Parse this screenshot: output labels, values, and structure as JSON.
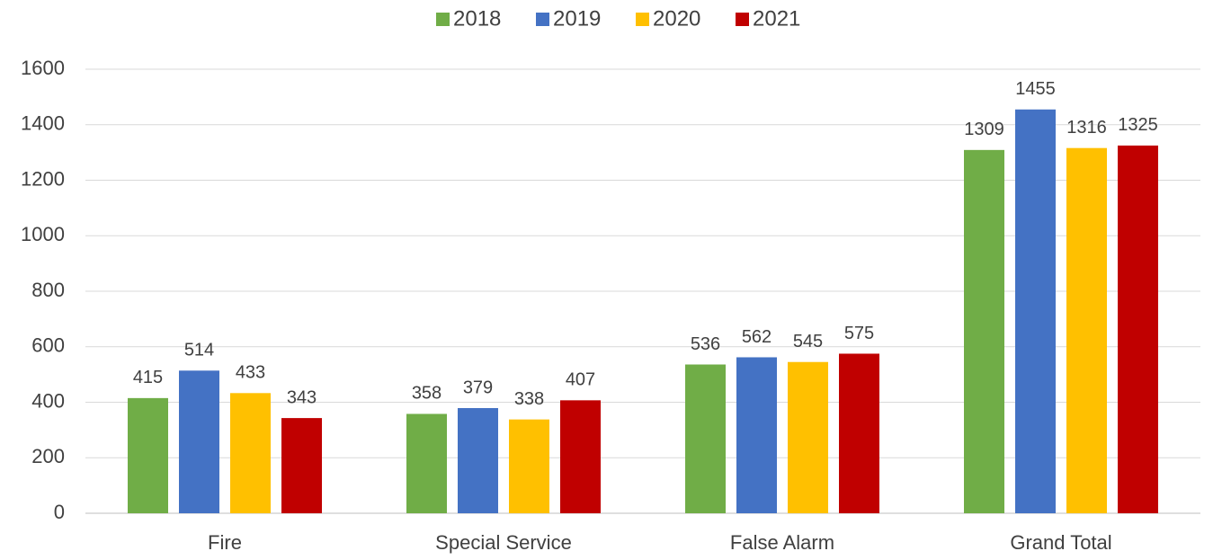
{
  "chart_data": {
    "type": "bar",
    "categories": [
      "Fire",
      "Special Service",
      "False Alarm",
      "Grand Total"
    ],
    "series": [
      {
        "name": "2018",
        "color": "#70ad47",
        "values": [
          415,
          358,
          536,
          1309
        ]
      },
      {
        "name": "2019",
        "color": "#4472c4",
        "values": [
          514,
          379,
          562,
          1455
        ]
      },
      {
        "name": "2020",
        "color": "#ffc000",
        "values": [
          433,
          338,
          545,
          1316
        ]
      },
      {
        "name": "2021",
        "color": "#c00000",
        "values": [
          343,
          407,
          575,
          1325
        ]
      }
    ],
    "ylim": [
      0,
      1600
    ],
    "yticks": [
      0,
      200,
      400,
      600,
      800,
      1000,
      1200,
      1400,
      1600
    ],
    "grid": true,
    "legend": "top"
  }
}
